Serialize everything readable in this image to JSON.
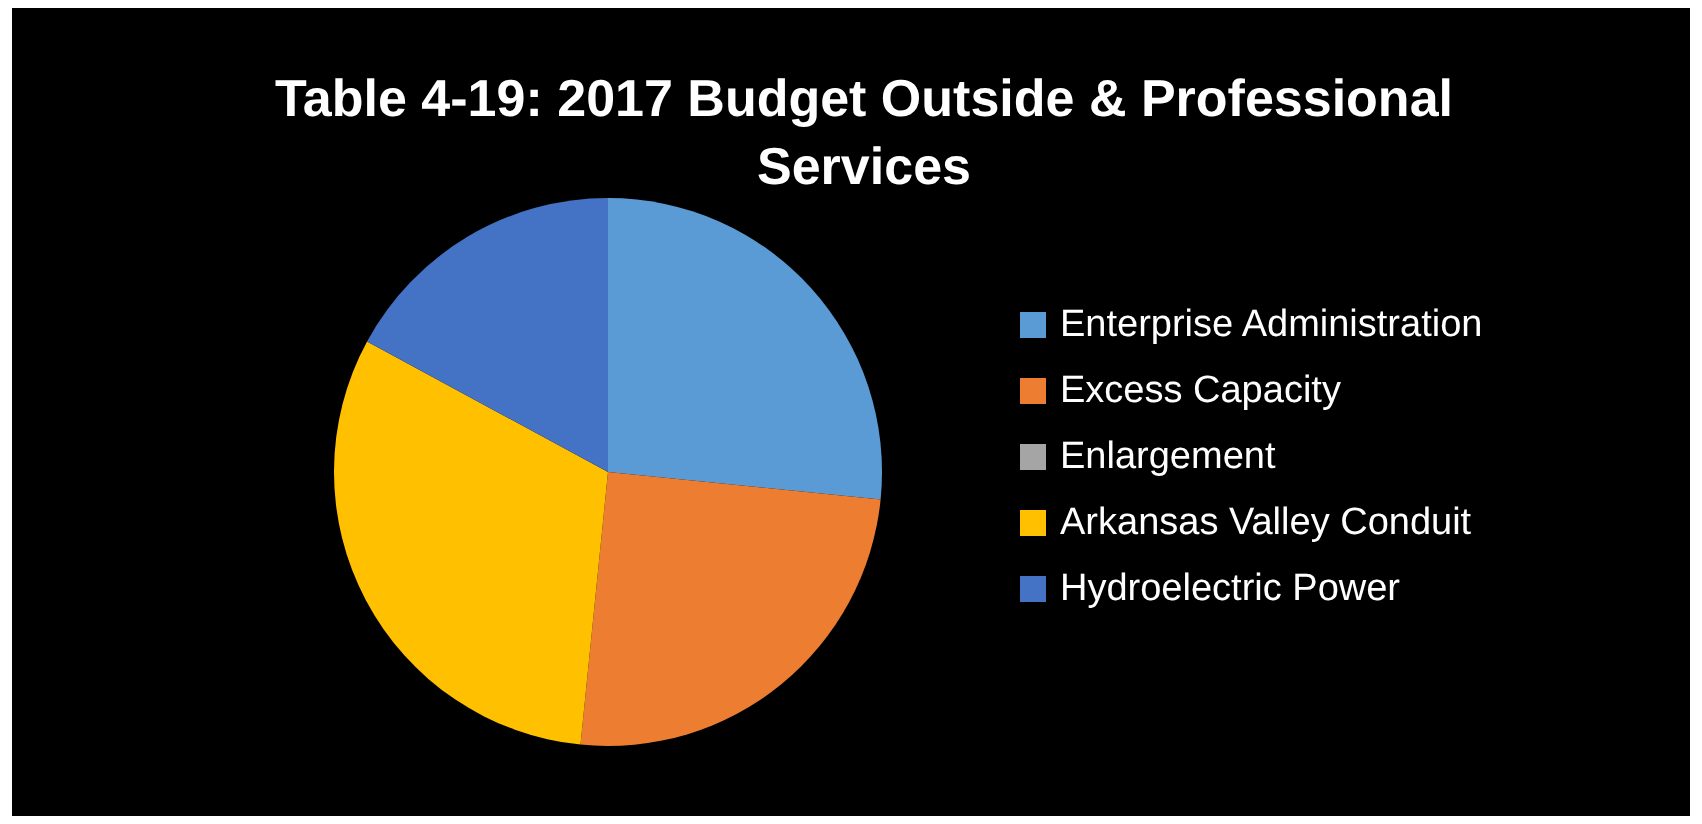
{
  "chart_data": {
    "type": "pie",
    "title": "Table 4-19: 2017 Budget Outside & Professional Services",
    "categories": [
      "Enterprise Administration",
      "Excess Capacity",
      "Enlargement",
      "Arkansas Valley Conduit",
      "Hydroelectric Power"
    ],
    "values": [
      26.6,
      25,
      0,
      31.3,
      17.1
    ],
    "colors": [
      "#5b9bd5",
      "#ed7d31",
      "#a5a5a5",
      "#ffc000",
      "#4472c4"
    ],
    "legend": "right"
  }
}
